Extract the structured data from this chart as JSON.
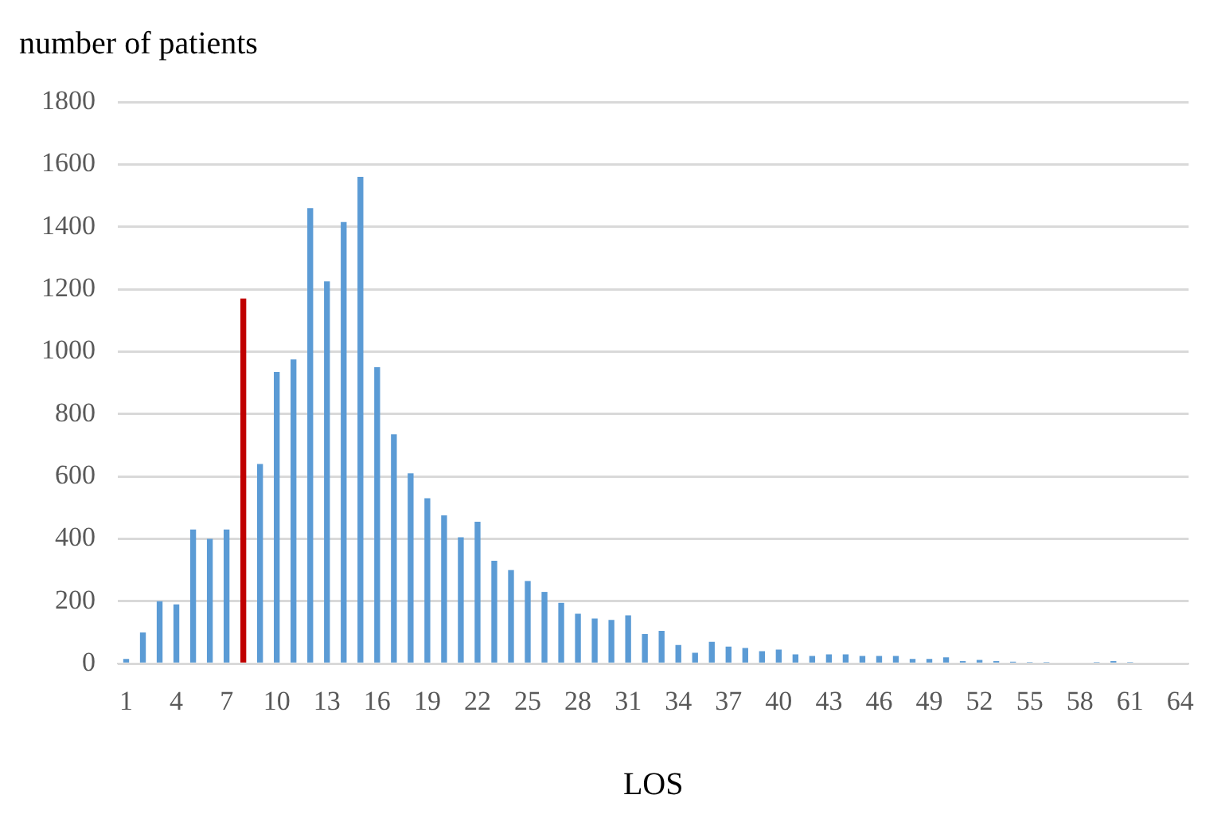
{
  "chart_data": {
    "type": "bar",
    "title": "number of patients",
    "xlabel": "LOS",
    "categories": [
      "1",
      null,
      null,
      "4",
      null,
      null,
      "7",
      null,
      null,
      "10",
      null,
      null,
      "13",
      null,
      null,
      "16",
      null,
      null,
      "19",
      null,
      null,
      "22",
      null,
      null,
      "25",
      null,
      null,
      "28",
      null,
      null,
      "31",
      null,
      null,
      "34",
      null,
      null,
      "37",
      null,
      null,
      "40",
      null,
      null,
      "43",
      null,
      null,
      "46",
      null,
      null,
      "49",
      null,
      null,
      "52",
      null,
      null,
      "55",
      null,
      null,
      "58",
      null,
      null,
      "61",
      null,
      null,
      "64"
    ],
    "values": [
      15,
      100,
      200,
      190,
      430,
      400,
      430,
      1170,
      640,
      935,
      975,
      1460,
      1225,
      1415,
      1560,
      950,
      735,
      610,
      530,
      475,
      405,
      455,
      330,
      300,
      265,
      230,
      195,
      160,
      145,
      140,
      155,
      95,
      105,
      60,
      35,
      70,
      55,
      50,
      40,
      45,
      30,
      25,
      30,
      30,
      25,
      25,
      25,
      15,
      15,
      20,
      8,
      12,
      8,
      6,
      5,
      5,
      0,
      0,
      5,
      8,
      5,
      null,
      null,
      null
    ],
    "colors": [
      "#5b9bd5",
      "#5b9bd5",
      "#5b9bd5",
      "#5b9bd5",
      "#5b9bd5",
      "#5b9bd5",
      "#5b9bd5",
      "#c00000",
      "#5b9bd5",
      "#5b9bd5",
      "#5b9bd5",
      "#5b9bd5",
      "#5b9bd5",
      "#5b9bd5",
      "#5b9bd5",
      "#5b9bd5",
      "#5b9bd5",
      "#5b9bd5",
      "#5b9bd5",
      "#5b9bd5",
      "#5b9bd5",
      "#5b9bd5",
      "#5b9bd5",
      "#5b9bd5",
      "#5b9bd5",
      "#5b9bd5",
      "#5b9bd5",
      "#5b9bd5",
      "#5b9bd5",
      "#5b9bd5",
      "#5b9bd5",
      "#5b9bd5",
      "#5b9bd5",
      "#5b9bd5",
      "#5b9bd5",
      "#5b9bd5",
      "#5b9bd5",
      "#5b9bd5",
      "#5b9bd5",
      "#5b9bd5",
      "#5b9bd5",
      "#5b9bd5",
      "#5b9bd5",
      "#5b9bd5",
      "#5b9bd5",
      "#5b9bd5",
      "#5b9bd5",
      "#5b9bd5",
      "#5b9bd5",
      "#5b9bd5",
      "#5b9bd5",
      "#5b9bd5",
      "#5b9bd5",
      "#5b9bd5",
      "#5b9bd5",
      "#5b9bd5",
      "#5b9bd5",
      "#5b9bd5",
      "#5b9bd5",
      "#5b9bd5",
      "#5b9bd5",
      "#5b9bd5",
      "#5b9bd5",
      "#5b9bd5"
    ],
    "ylim": [
      0,
      1800
    ],
    "yticks": [
      0,
      200,
      400,
      600,
      800,
      1000,
      1200,
      1400,
      1600,
      1800
    ],
    "grid": "y",
    "legend": false
  }
}
